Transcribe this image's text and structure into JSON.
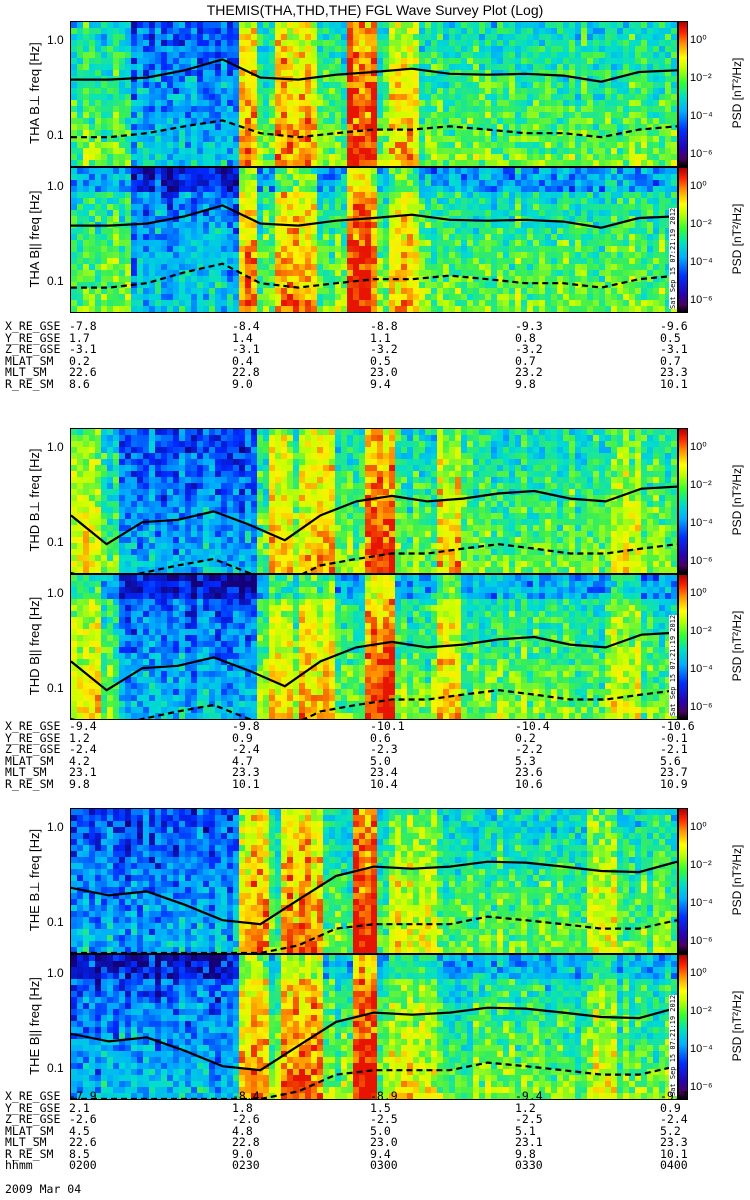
{
  "title": "THEMIS(THA,THD,THE) FGL Wave Survey Plot (Log)",
  "colorbar": {
    "label": "PSD [nT²/Hz]",
    "ticks": [
      "10⁰",
      "10⁻²",
      "10⁻⁴",
      "10⁻⁶"
    ]
  },
  "axis": {
    "yticks": [
      "1.0",
      "0.1"
    ]
  },
  "stamp": "Sat Sep 15 07:21:19 2012",
  "panels": [
    {
      "label": "THA B⊥ freq [Hz]"
    },
    {
      "label": "THA B|| freq [Hz]"
    },
    {
      "label": "THD B⊥ freq [Hz]"
    },
    {
      "label": "THD B|| freq [Hz]"
    },
    {
      "label": "THE B⊥ freq [Hz]"
    },
    {
      "label": "THE B|| freq [Hz]"
    }
  ],
  "orbit_blocks": [
    {
      "rows": [
        {
          "label": "X_RE_GSE",
          "values": [
            "-7.8",
            "-8.4",
            "-8.8",
            "-9.3",
            "-9.6"
          ]
        },
        {
          "label": "Y_RE_GSE",
          "values": [
            "1.7",
            "1.4",
            "1.1",
            "0.8",
            "0.5"
          ]
        },
        {
          "label": "Z_RE_GSE",
          "values": [
            "-3.1",
            "-3.1",
            "-3.2",
            "-3.2",
            "-3.1"
          ]
        },
        {
          "label": "MLAT_SM",
          "values": [
            "0.2",
            "0.4",
            "0.5",
            "0.7",
            "0.7"
          ]
        },
        {
          "label": "MLT_SM",
          "values": [
            "22.6",
            "22.8",
            "23.0",
            "23.2",
            "23.3"
          ]
        },
        {
          "label": "R_RE_SM",
          "values": [
            "8.6",
            "9.0",
            "9.4",
            "9.8",
            "10.1"
          ]
        }
      ]
    },
    {
      "rows": [
        {
          "label": "X_RE_GSE",
          "values": [
            "-9.4",
            "-9.8",
            "-10.1",
            "-10.4",
            "-10.6"
          ]
        },
        {
          "label": "Y_RE_GSE",
          "values": [
            "1.2",
            "0.9",
            "0.6",
            "0.2",
            "-0.1"
          ]
        },
        {
          "label": "Z_RE_GSE",
          "values": [
            "-2.4",
            "-2.4",
            "-2.3",
            "-2.2",
            "-2.1"
          ]
        },
        {
          "label": "MLAT_SM",
          "values": [
            "4.2",
            "4.7",
            "5.0",
            "5.3",
            "5.6"
          ]
        },
        {
          "label": "MLT_SM",
          "values": [
            "23.1",
            "23.3",
            "23.4",
            "23.6",
            "23.7"
          ]
        },
        {
          "label": "R_RE_SM",
          "values": [
            "9.8",
            "10.1",
            "10.4",
            "10.6",
            "10.9"
          ]
        }
      ]
    },
    {
      "rows": [
        {
          "label": "X_RE_GSE",
          "values": [
            "-7.9",
            "-8.4",
            "-8.9",
            "-9.4",
            "-9.7"
          ]
        },
        {
          "label": "Y_RE_GSE",
          "values": [
            "2.1",
            "1.8",
            "1.5",
            "1.2",
            "0.9"
          ]
        },
        {
          "label": "Z_RE_GSE",
          "values": [
            "-2.6",
            "-2.6",
            "-2.5",
            "-2.5",
            "-2.4"
          ]
        },
        {
          "label": "MLAT_SM",
          "values": [
            "4.5",
            "4.8",
            "5.0",
            "5.1",
            "5.2"
          ]
        },
        {
          "label": "MLT_SM",
          "values": [
            "22.6",
            "22.8",
            "23.0",
            "23.1",
            "23.3"
          ]
        },
        {
          "label": "R_RE_SM",
          "values": [
            "8.5",
            "9.0",
            "9.4",
            "9.8",
            "10.1"
          ]
        },
        {
          "label": "hhmm",
          "values": [
            "0200",
            "0230",
            "0300",
            "0330",
            "0400"
          ]
        }
      ]
    }
  ],
  "date_label": "2009 Mar 04",
  "chart_data": {
    "type": "heatmap",
    "title": "THEMIS(THA,THD,THE) FGL Wave Survey Plot (Log)",
    "xlabel": "hhmm",
    "x_ticks": [
      "0200",
      "0230",
      "0300",
      "0330",
      "0400"
    ],
    "ylabel": "freq [Hz]",
    "yscale": "log",
    "ylim": [
      0.05,
      1.6
    ],
    "color_scale": "log",
    "color_range": [
      1e-06,
      10
    ],
    "series": [
      {
        "name": "THA B⊥",
        "solid_line_hz": [
          0.4,
          0.4,
          0.42,
          0.5,
          0.65,
          0.42,
          0.4,
          0.45,
          0.48,
          0.52,
          0.46,
          0.45,
          0.46,
          0.44,
          0.38,
          0.48,
          0.5
        ],
        "dashed_line_hz": [
          0.1,
          0.1,
          0.11,
          0.13,
          0.15,
          0.11,
          0.1,
          0.11,
          0.12,
          0.12,
          0.13,
          0.12,
          0.11,
          0.11,
          0.1,
          0.12,
          0.13
        ]
      },
      {
        "name": "THA B||",
        "solid_line_hz": [
          0.4,
          0.4,
          0.42,
          0.5,
          0.65,
          0.42,
          0.4,
          0.45,
          0.48,
          0.52,
          0.46,
          0.45,
          0.46,
          0.44,
          0.38,
          0.48,
          0.5
        ],
        "dashed_line_hz": [
          0.09,
          0.09,
          0.1,
          0.13,
          0.16,
          0.1,
          0.09,
          0.1,
          0.11,
          0.11,
          0.12,
          0.11,
          0.1,
          0.1,
          0.09,
          0.11,
          0.12
        ]
      },
      {
        "name": "THD B⊥",
        "solid_line_hz": [
          0.2,
          0.1,
          0.17,
          0.18,
          0.22,
          0.16,
          0.11,
          0.2,
          0.28,
          0.32,
          0.28,
          0.3,
          0.34,
          0.36,
          0.3,
          0.28,
          0.38,
          0.4
        ],
        "dashed_line_hz": [
          0.05,
          0.04,
          0.05,
          0.06,
          0.07,
          0.05,
          0.04,
          0.06,
          0.07,
          0.08,
          0.08,
          0.09,
          0.1,
          0.09,
          0.08,
          0.08,
          0.09,
          0.1
        ]
      },
      {
        "name": "THD B||",
        "solid_line_hz": [
          0.2,
          0.1,
          0.17,
          0.18,
          0.22,
          0.16,
          0.11,
          0.2,
          0.28,
          0.32,
          0.28,
          0.3,
          0.34,
          0.36,
          0.3,
          0.28,
          0.38,
          0.4
        ],
        "dashed_line_hz": [
          0.05,
          0.04,
          0.05,
          0.06,
          0.07,
          0.05,
          0.04,
          0.06,
          0.07,
          0.08,
          0.08,
          0.09,
          0.1,
          0.09,
          0.08,
          0.08,
          0.09,
          0.1
        ]
      },
      {
        "name": "THE B⊥",
        "solid_line_hz": [
          0.24,
          0.2,
          0.22,
          0.16,
          0.11,
          0.1,
          0.18,
          0.32,
          0.4,
          0.38,
          0.4,
          0.45,
          0.44,
          0.4,
          0.36,
          0.35,
          0.45
        ],
        "dashed_line_hz": [
          0.05,
          0.05,
          0.05,
          0.05,
          0.05,
          0.05,
          0.06,
          0.09,
          0.1,
          0.1,
          0.1,
          0.12,
          0.11,
          0.1,
          0.09,
          0.09,
          0.11
        ]
      },
      {
        "name": "THE B||",
        "solid_line_hz": [
          0.24,
          0.2,
          0.22,
          0.16,
          0.11,
          0.1,
          0.18,
          0.32,
          0.4,
          0.38,
          0.4,
          0.45,
          0.44,
          0.4,
          0.36,
          0.35,
          0.45
        ],
        "dashed_line_hz": [
          0.05,
          0.05,
          0.05,
          0.05,
          0.05,
          0.05,
          0.06,
          0.09,
          0.1,
          0.1,
          0.1,
          0.12,
          0.11,
          0.1,
          0.09,
          0.09,
          0.11
        ]
      }
    ]
  }
}
